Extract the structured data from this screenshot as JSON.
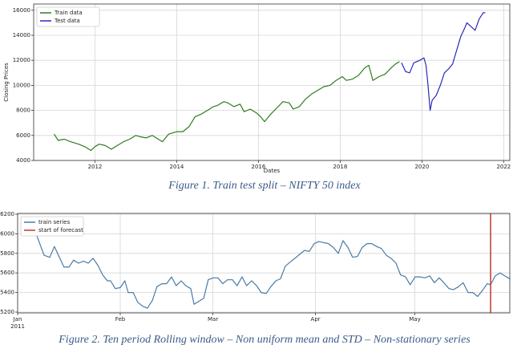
{
  "chart_data": [
    {
      "type": "line",
      "caption": "Figure 1. Train test split – NIFTY 50 index",
      "x_label": "Dates",
      "y_label": "Closing Prices",
      "xlim": [
        2010.5,
        2022.15
      ],
      "xticks": [
        2012,
        2014,
        2016,
        2018,
        2020,
        2022
      ],
      "ylim": [
        4000,
        16500
      ],
      "yticks": [
        4000,
        6000,
        8000,
        10000,
        12000,
        14000,
        16000
      ],
      "grid": true,
      "legend": "upper left",
      "series": [
        {
          "name": "Train data",
          "color": "#2f7d1f",
          "x": [
            2011.0,
            2011.1,
            2011.25,
            2011.4,
            2011.6,
            2011.75,
            2011.9,
            2012.0,
            2012.1,
            2012.25,
            2012.4,
            2012.55,
            2012.7,
            2012.85,
            2013.0,
            2013.1,
            2013.25,
            2013.4,
            2013.55,
            2013.65,
            2013.8,
            2013.9,
            2014.0,
            2014.15,
            2014.3,
            2014.45,
            2014.6,
            2014.75,
            2014.9,
            2015.0,
            2015.15,
            2015.25,
            2015.4,
            2015.55,
            2015.65,
            2015.8,
            2015.95,
            2016.05,
            2016.15,
            2016.3,
            2016.45,
            2016.6,
            2016.75,
            2016.85,
            2017.0,
            2017.15,
            2017.3,
            2017.45,
            2017.6,
            2017.75,
            2017.9,
            2018.05,
            2018.15,
            2018.3,
            2018.45,
            2018.6,
            2018.7,
            2018.8,
            2018.95,
            2019.1,
            2019.25,
            2019.35,
            2019.45
          ],
          "values": [
            6100,
            5600,
            5700,
            5500,
            5300,
            5100,
            4800,
            5100,
            5300,
            5200,
            4900,
            5200,
            5500,
            5700,
            6000,
            5900,
            5800,
            6000,
            5700,
            5500,
            6100,
            6200,
            6300,
            6300,
            6700,
            7500,
            7700,
            8000,
            8300,
            8400,
            8700,
            8600,
            8300,
            8500,
            7900,
            8100,
            7800,
            7500,
            7100,
            7700,
            8200,
            8700,
            8600,
            8100,
            8300,
            8900,
            9300,
            9600,
            9900,
            10000,
            10400,
            10700,
            10400,
            10500,
            10800,
            11400,
            11600,
            10400,
            10700,
            10900,
            11400,
            11700,
            11900
          ]
        },
        {
          "name": "Test data",
          "color": "#2a2ab8",
          "x": [
            2019.5,
            2019.6,
            2019.7,
            2019.8,
            2019.95,
            2020.05,
            2020.1,
            2020.15,
            2020.2,
            2020.25,
            2020.35,
            2020.45,
            2020.55,
            2020.65,
            2020.75,
            2020.85,
            2020.95,
            2021.05,
            2021.1,
            2021.2,
            2021.3,
            2021.4,
            2021.5,
            2021.55
          ],
          "values": [
            11800,
            11100,
            11000,
            11800,
            12000,
            12200,
            11600,
            10000,
            8000,
            8800,
            9200,
            10000,
            11000,
            11300,
            11700,
            12800,
            13900,
            14600,
            15000,
            14700,
            14400,
            15300,
            15800,
            15800
          ]
        }
      ]
    },
    {
      "type": "line",
      "caption": "Figure 2. Ten period Rolling window – Non uniform mean and STD – Non-stationary series",
      "xlim": [
        0,
        148.7
      ],
      "xticks": [
        {
          "value": 0,
          "label": "Jan"
        },
        {
          "value": 31,
          "label": "Feb"
        },
        {
          "value": 59,
          "label": "Mar"
        },
        {
          "value": 90,
          "label": "Apr"
        },
        {
          "value": 120,
          "label": "May"
        }
      ],
      "x_year_label": "2011",
      "ylim": [
        5192,
        6208
      ],
      "yticks": [
        5200,
        5400,
        5600,
        5800,
        6000,
        6200
      ],
      "grid": true,
      "legend": "upper left",
      "series": [
        {
          "name": "train series",
          "color": "#4a7ba6",
          "x": [
            5.6,
            8.0,
            9.7,
            11.1,
            14.0,
            15.5,
            16.9,
            18.4,
            19.9,
            21.3,
            22.8,
            24.2,
            25.7,
            27.1,
            28.1,
            29.5,
            31.0,
            32.4,
            33.4,
            34.9,
            36.3,
            37.8,
            39.2,
            40.7,
            42.1,
            43.6,
            45.0,
            46.5,
            47.9,
            49.4,
            50.8,
            52.3,
            53.3,
            54.7,
            56.2,
            57.6,
            59.1,
            60.5,
            62.0,
            63.4,
            64.9,
            66.3,
            67.8,
            69.2,
            70.7,
            72.2,
            73.6,
            75.1,
            76.5,
            78.0,
            79.4,
            80.9,
            82.3,
            83.8,
            85.2,
            86.7,
            88.1,
            89.6,
            91.0,
            92.5,
            93.9,
            95.4,
            96.9,
            98.3,
            99.8,
            101.2,
            102.7,
            104.1,
            105.6,
            107.0,
            108.5,
            109.9,
            111.4,
            112.8,
            114.3,
            115.7,
            117.2,
            118.6,
            120.1,
            121.5,
            123.0,
            124.5,
            125.9,
            127.4,
            128.8,
            130.3,
            131.7,
            133.2,
            134.6,
            136.1,
            137.5,
            139.0,
            140.4,
            141.9,
            142.9,
            144.3,
            145.8,
            147.2,
            148.7
          ],
          "values": [
            6000,
            5780,
            5760,
            5870,
            5660,
            5660,
            5730,
            5700,
            5720,
            5700,
            5750,
            5680,
            5580,
            5520,
            5520,
            5440,
            5450,
            5520,
            5400,
            5400,
            5300,
            5260,
            5240,
            5320,
            5460,
            5490,
            5490,
            5560,
            5470,
            5520,
            5470,
            5440,
            5280,
            5310,
            5340,
            5530,
            5550,
            5550,
            5490,
            5530,
            5530,
            5470,
            5560,
            5470,
            5520,
            5470,
            5400,
            5390,
            5460,
            5520,
            5540,
            5670,
            5710,
            5750,
            5790,
            5830,
            5820,
            5900,
            5920,
            5910,
            5900,
            5860,
            5800,
            5930,
            5860,
            5760,
            5770,
            5860,
            5900,
            5900,
            5870,
            5850,
            5780,
            5750,
            5700,
            5580,
            5560,
            5480,
            5560,
            5560,
            5550,
            5570,
            5500,
            5550,
            5500,
            5440,
            5430,
            5460,
            5500,
            5400,
            5400,
            5360,
            5420,
            5490,
            5480,
            5570,
            5600,
            5570,
            5540
          ]
        }
      ],
      "vlines": [
        {
          "name": "start of forecast",
          "color": "#c0392b",
          "x": 142.9
        }
      ]
    }
  ]
}
